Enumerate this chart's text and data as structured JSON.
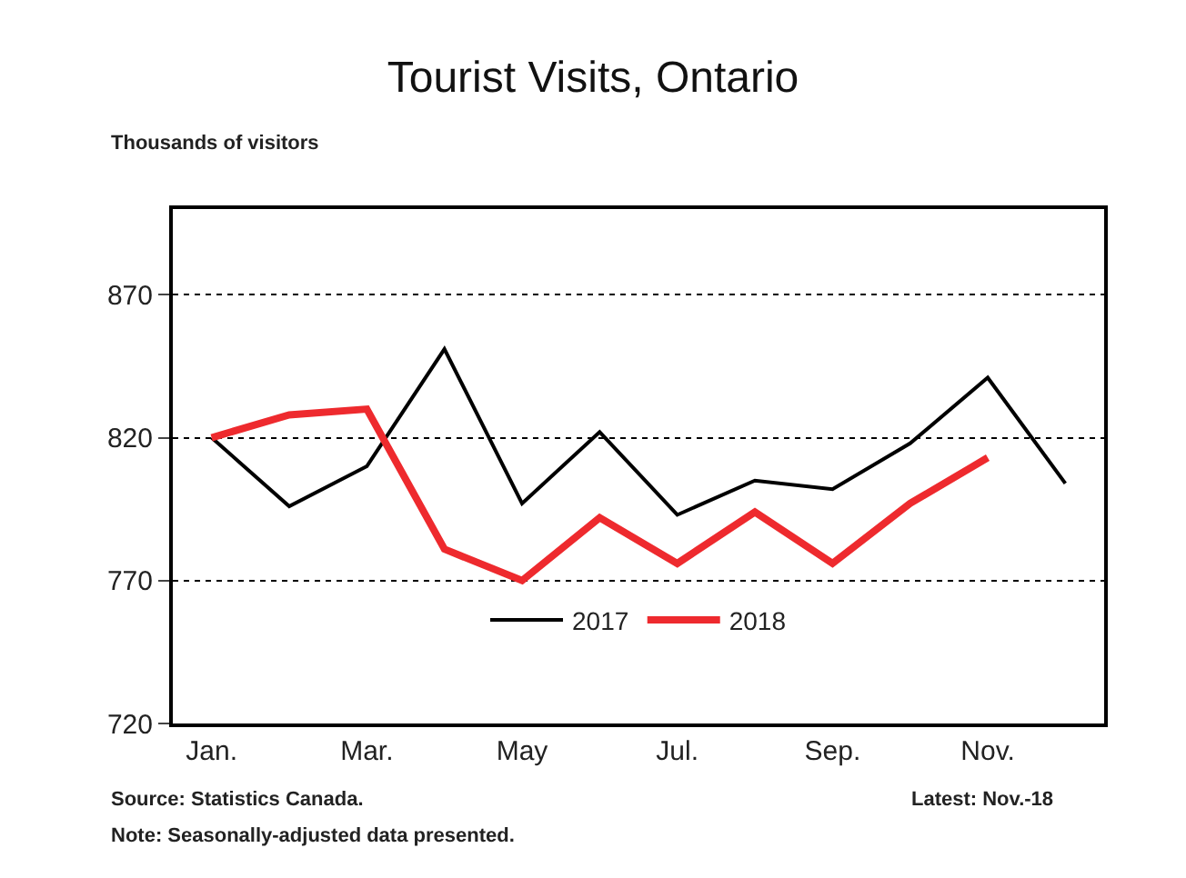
{
  "chart_data": {
    "type": "line",
    "title": "Tourist Visits, Ontario",
    "ylabel": "Thousands of visitors",
    "categories": [
      "Jan.",
      null,
      "Mar.",
      null,
      "May",
      null,
      "Jul.",
      null,
      "Sep.",
      null,
      "Nov.",
      null
    ],
    "series": [
      {
        "name": "2017",
        "color": "#000000",
        "values": [
          820,
          796,
          810,
          851,
          797,
          822,
          793,
          805,
          802,
          818,
          841,
          804
        ]
      },
      {
        "name": "2018",
        "color": "#ee2a2e",
        "values": [
          820,
          828,
          830,
          781,
          770,
          792,
          776,
          794,
          776,
          797,
          813,
          null
        ]
      }
    ],
    "ylim": [
      720,
      900
    ],
    "yticks": [
      720,
      770,
      820,
      870
    ],
    "grid": "y",
    "legend": "bottom",
    "marker": "none",
    "line_style": "solid",
    "annotations": [
      "Source: Statistics Canada.",
      "Latest: Nov.-18",
      "Note: Seasonally-adjusted data presented."
    ]
  }
}
